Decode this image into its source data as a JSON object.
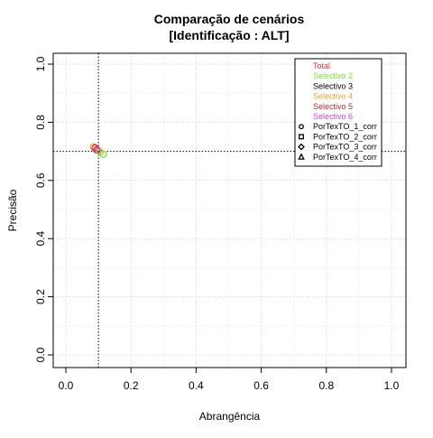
{
  "chart_data": {
    "type": "scatter",
    "title": [
      "Comparação de cenários",
      "[Identificação : ALT]"
    ],
    "xlabel": "Abrangência",
    "ylabel": "Precisão",
    "xlim": [
      0,
      1
    ],
    "ylim": [
      0,
      1
    ],
    "xticks": [
      "0.0",
      "0.2",
      "0.4",
      "0.6",
      "0.8",
      "1.0"
    ],
    "yticks": [
      "0.0",
      "0.2",
      "0.4",
      "0.6",
      "0.8",
      "1.0"
    ],
    "grid": true,
    "reference_lines": {
      "x": 0.1,
      "y": 0.7
    },
    "legend_position": "top-right",
    "legend_colors": [
      {
        "label": "Total",
        "color": "#ff2a2a"
      },
      {
        "label": "Selectivo 2",
        "color": "#7fe12a"
      },
      {
        "label": "Selectivo 3",
        "color": "#000000"
      },
      {
        "label": "Selectivo 4",
        "color": "#f0a030"
      },
      {
        "label": "Selectivo 5",
        "color": "#b03030"
      },
      {
        "label": "Selectivo 6",
        "color": "#e040e0"
      }
    ],
    "legend_shapes": [
      {
        "label": "PorTexTO_1_corr",
        "shape": "circle"
      },
      {
        "label": "PorTexTO_2_corr",
        "shape": "square"
      },
      {
        "label": "PorTexTO_3_corr",
        "shape": "diamond"
      },
      {
        "label": "PorTexTO_4_corr",
        "shape": "triangle"
      }
    ],
    "points": [
      {
        "x": 0.085,
        "y": 0.715,
        "color": "#f0a030",
        "shape": "circle"
      },
      {
        "x": 0.09,
        "y": 0.712,
        "color": "#ff2a2a",
        "shape": "circle"
      },
      {
        "x": 0.095,
        "y": 0.705,
        "color": "#b03030",
        "shape": "circle"
      },
      {
        "x": 0.1,
        "y": 0.703,
        "color": "#e040e0",
        "shape": "circle"
      },
      {
        "x": 0.105,
        "y": 0.698,
        "color": "#7fe12a",
        "shape": "circle"
      },
      {
        "x": 0.115,
        "y": 0.69,
        "color": "#7fe12a",
        "shape": "circle"
      }
    ]
  }
}
